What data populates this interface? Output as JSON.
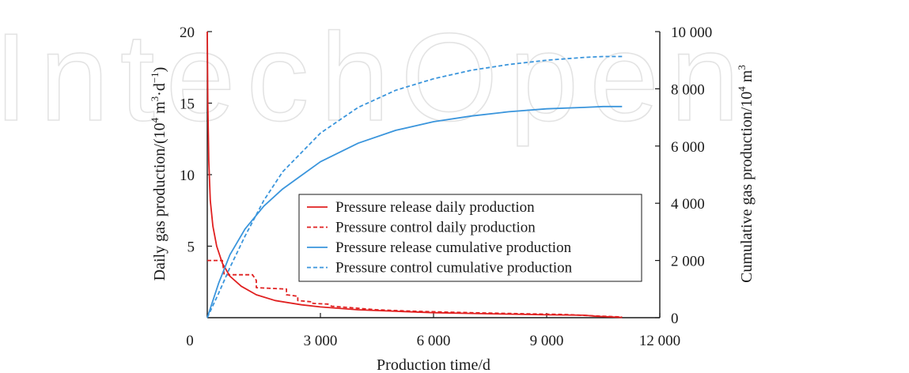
{
  "watermark": "IntechOpen",
  "chart_data": {
    "type": "line",
    "title": "",
    "xlabel": "Production time/d",
    "ylabel_left_parts": [
      "Daily gas production/(10",
      "4",
      " m",
      "3",
      "·d",
      "−1",
      ")"
    ],
    "ylabel_right_parts": [
      "Cumulative gas production/10",
      "4",
      " m",
      "3"
    ],
    "xlim": [
      0,
      12000
    ],
    "ylim_left": [
      0,
      20
    ],
    "ylim_right": [
      0,
      10000
    ],
    "x_ticks": [
      0,
      3000,
      6000,
      9000,
      12000
    ],
    "x_tick_labels": [
      "0",
      "3 000",
      "6 000",
      "9 000",
      "12 000"
    ],
    "y_left_ticks": [
      5,
      10,
      15,
      20
    ],
    "y_left_tick_labels": [
      "5",
      "10",
      "15",
      "20"
    ],
    "y_right_ticks": [
      0,
      2000,
      4000,
      6000,
      8000,
      10000
    ],
    "y_right_tick_labels": [
      "0",
      "2 000",
      "4 000",
      "6 000",
      "8 000",
      "10 000"
    ],
    "grid": false,
    "legend_position": "center-right",
    "series": [
      {
        "name": "Pressure release daily production",
        "axis": "left",
        "color": "#e02020",
        "dash": "solid",
        "x": [
          0,
          15,
          40,
          80,
          150,
          250,
          400,
          600,
          900,
          1300,
          1800,
          2500,
          3000,
          4000,
          5000,
          6000,
          7000,
          8000,
          9000,
          10000,
          10300,
          11000
        ],
        "y": [
          20,
          15,
          11,
          8.2,
          6.4,
          5.0,
          3.8,
          2.9,
          2.2,
          1.6,
          1.2,
          0.9,
          0.75,
          0.55,
          0.45,
          0.35,
          0.3,
          0.25,
          0.2,
          0.17,
          0.1,
          0.02
        ]
      },
      {
        "name": "Pressure control daily production",
        "axis": "left",
        "color": "#e02020",
        "dash": "dashed",
        "x": [
          0,
          400,
          450,
          1200,
          1300,
          1300,
          2100,
          2100,
          2400,
          2400,
          2800,
          2800,
          3200,
          3300,
          3800,
          4500,
          5500,
          6500,
          7500,
          8500,
          9500,
          10300,
          11000
        ],
        "y": [
          4.0,
          4.0,
          3.0,
          3.0,
          2.6,
          2.1,
          2.0,
          1.6,
          1.5,
          1.2,
          1.1,
          1.0,
          0.95,
          0.8,
          0.7,
          0.55,
          0.45,
          0.38,
          0.32,
          0.27,
          0.22,
          0.12,
          0.05
        ]
      },
      {
        "name": "Pressure release cumulative production",
        "axis": "right",
        "color": "#3a95dc",
        "dash": "solid",
        "x": [
          0,
          300,
          600,
          1000,
          1500,
          2000,
          3000,
          4000,
          5000,
          6000,
          7000,
          8000,
          9000,
          10000,
          10500,
          11000
        ],
        "y": [
          0,
          1200,
          2200,
          3100,
          3900,
          4500,
          5450,
          6100,
          6550,
          6850,
          7050,
          7200,
          7300,
          7350,
          7380,
          7380
        ]
      },
      {
        "name": "Pressure control cumulative production",
        "axis": "right",
        "color": "#3a95dc",
        "dash": "dashed",
        "x": [
          0,
          300,
          600,
          1000,
          1500,
          2000,
          3000,
          4000,
          5000,
          6000,
          7000,
          8000,
          9000,
          10000,
          10500,
          11000
        ],
        "y": [
          0,
          850,
          1750,
          2850,
          4100,
          5100,
          6450,
          7350,
          7950,
          8350,
          8650,
          8850,
          9000,
          9100,
          9130,
          9130
        ]
      }
    ]
  }
}
